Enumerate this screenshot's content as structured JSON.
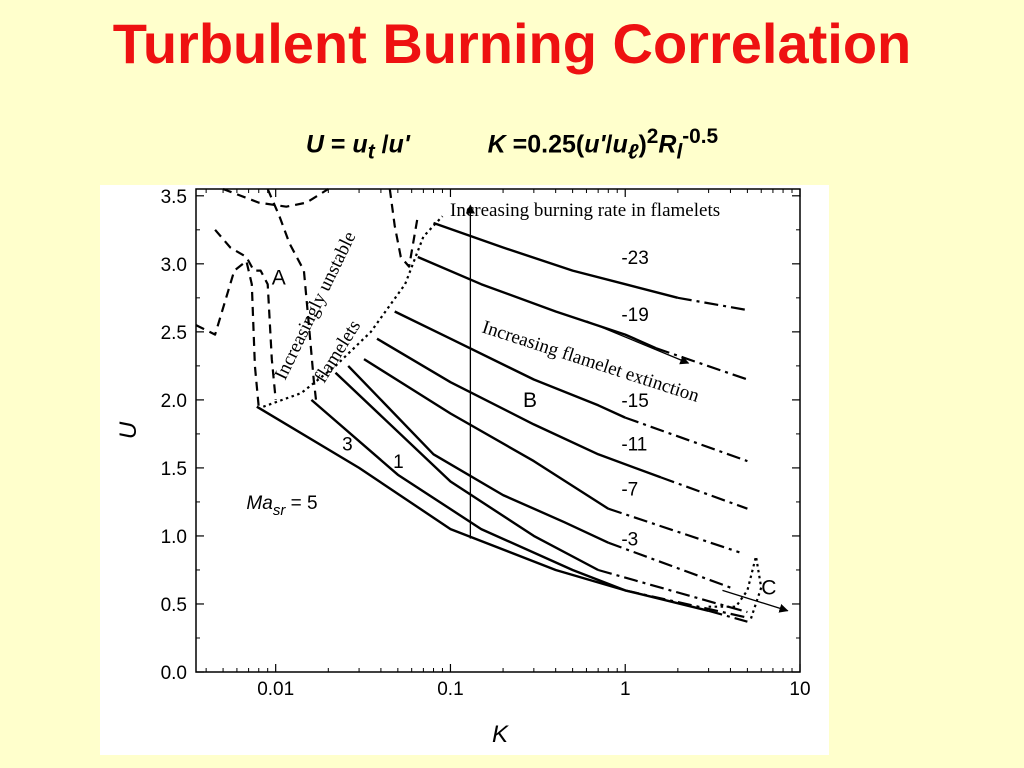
{
  "slide": {
    "title": "Turbulent Burning Correlation",
    "formula": {
      "U_lhs": "U",
      "eq": " = ",
      "u": "u",
      "t": "t",
      "slash": " /",
      "uprime": "u'",
      "K_lhs": "K",
      "k_eq": " =0.25(",
      "uprime2": "u'",
      "slash2": "/",
      "ul": "u",
      "ell": "ℓ",
      "close": ")",
      "sq": "2",
      "R": "R",
      "l": "l",
      "exp": "-0.5"
    }
  },
  "chart_data": {
    "type": "line",
    "xscale": "log",
    "xlabel": "K",
    "ylabel": "U",
    "xlim": [
      0.0035,
      10
    ],
    "ylim": [
      0,
      3.55
    ],
    "xticks": [
      0.01,
      0.1,
      1,
      10
    ],
    "xtick_labels": [
      "0.01",
      "0.1",
      "1",
      "10"
    ],
    "yticks": [
      0,
      0.5,
      1.0,
      1.5,
      2.0,
      2.5,
      3.0,
      3.5
    ],
    "ytick_labels": [
      "0.0",
      "0.5",
      "1.0",
      "1.5",
      "2.0",
      "2.5",
      "3.0",
      "3.5"
    ],
    "grid": false,
    "series": [
      {
        "name": "-23",
        "style": "solid",
        "points": [
          [
            0.08,
            3.3
          ],
          [
            0.2,
            3.12
          ],
          [
            0.5,
            2.95
          ],
          [
            1.0,
            2.85
          ],
          [
            2.0,
            2.75
          ]
        ]
      },
      {
        "name": "-23",
        "style": "dashdot",
        "points": [
          [
            2.0,
            2.75
          ],
          [
            5.0,
            2.66
          ]
        ]
      },
      {
        "name": "-19",
        "style": "solid",
        "points": [
          [
            0.065,
            3.05
          ],
          [
            0.15,
            2.85
          ],
          [
            0.4,
            2.65
          ],
          [
            1.0,
            2.48
          ],
          [
            1.5,
            2.38
          ]
        ]
      },
      {
        "name": "-19",
        "style": "dashdot",
        "points": [
          [
            1.5,
            2.38
          ],
          [
            5.0,
            2.15
          ]
        ]
      },
      {
        "name": "-15",
        "style": "solid",
        "points": [
          [
            0.048,
            2.65
          ],
          [
            0.1,
            2.45
          ],
          [
            0.3,
            2.15
          ],
          [
            0.7,
            1.96
          ],
          [
            1.0,
            1.87
          ]
        ]
      },
      {
        "name": "-15",
        "style": "dashdot",
        "points": [
          [
            1.0,
            1.87
          ],
          [
            5.0,
            1.55
          ]
        ]
      },
      {
        "name": "-11",
        "style": "solid",
        "points": [
          [
            0.038,
            2.45
          ],
          [
            0.1,
            2.13
          ],
          [
            0.3,
            1.82
          ],
          [
            0.7,
            1.6
          ],
          [
            1.6,
            1.43
          ]
        ]
      },
      {
        "name": "-11",
        "style": "dashdot",
        "points": [
          [
            1.6,
            1.43
          ],
          [
            5.0,
            1.2
          ]
        ]
      },
      {
        "name": "-7",
        "style": "solid",
        "points": [
          [
            0.032,
            2.3
          ],
          [
            0.1,
            1.9
          ],
          [
            0.3,
            1.55
          ],
          [
            0.8,
            1.2
          ]
        ]
      },
      {
        "name": "-7",
        "style": "dashdot",
        "points": [
          [
            0.8,
            1.2
          ],
          [
            4.5,
            0.88
          ]
        ]
      },
      {
        "name": "-3",
        "style": "solid",
        "points": [
          [
            0.026,
            2.25
          ],
          [
            0.08,
            1.6
          ],
          [
            0.2,
            1.3
          ],
          [
            0.45,
            1.1
          ],
          [
            0.8,
            0.95
          ]
        ]
      },
      {
        "name": "-3",
        "style": "dashdot",
        "points": [
          [
            0.8,
            0.95
          ],
          [
            4.0,
            0.62
          ]
        ]
      },
      {
        "name": "1",
        "style": "solid",
        "points": [
          [
            0.022,
            2.2
          ],
          [
            0.1,
            1.4
          ],
          [
            0.3,
            1.0
          ],
          [
            0.7,
            0.75
          ]
        ]
      },
      {
        "name": "1",
        "style": "dashdot",
        "points": [
          [
            0.7,
            0.75
          ],
          [
            5.0,
            0.44
          ]
        ]
      },
      {
        "name": "3",
        "style": "solid",
        "points": [
          [
            0.016,
            2.0
          ],
          [
            0.05,
            1.45
          ],
          [
            0.15,
            1.05
          ],
          [
            0.5,
            0.75
          ],
          [
            1.0,
            0.6
          ]
        ]
      },
      {
        "name": "3",
        "style": "dashdot",
        "points": [
          [
            1.0,
            0.6
          ],
          [
            5.0,
            0.4
          ]
        ]
      },
      {
        "name": "5",
        "style": "solid",
        "points": [
          [
            0.0078,
            1.95
          ],
          [
            0.03,
            1.5
          ],
          [
            0.1,
            1.05
          ],
          [
            0.4,
            0.75
          ],
          [
            1.0,
            0.6
          ],
          [
            3.0,
            0.45
          ]
        ]
      },
      {
        "name": "5",
        "style": "dashdot",
        "points": [
          [
            3.0,
            0.45
          ],
          [
            5.0,
            0.37
          ]
        ]
      },
      {
        "name": "A-boundary-left",
        "style": "dashed",
        "points": [
          [
            0.0035,
            2.55
          ],
          [
            0.0045,
            2.48
          ],
          [
            0.0058,
            2.95
          ],
          [
            0.0068,
            3.02
          ],
          [
            0.0073,
            2.85
          ],
          [
            0.0076,
            2.25
          ],
          [
            0.008,
            1.95
          ]
        ]
      },
      {
        "name": "A-boundary-upper",
        "style": "dashed",
        "points": [
          [
            0.0045,
            3.25
          ],
          [
            0.0055,
            3.12
          ],
          [
            0.0068,
            3.05
          ],
          [
            0.0075,
            2.95
          ],
          [
            0.0082,
            2.95
          ],
          [
            0.009,
            2.85
          ],
          [
            0.0095,
            2.3
          ],
          [
            0.01,
            2.0
          ]
        ]
      },
      {
        "name": "A-top-1",
        "style": "dashed",
        "points": [
          [
            0.005,
            3.55
          ],
          [
            0.008,
            3.45
          ],
          [
            0.0115,
            3.42
          ],
          [
            0.015,
            3.45
          ],
          [
            0.02,
            3.55
          ]
        ]
      },
      {
        "name": "A-top-2",
        "style": "dashed",
        "points": [
          [
            0.009,
            3.55
          ],
          [
            0.0105,
            3.35
          ],
          [
            0.012,
            3.15
          ],
          [
            0.0145,
            2.95
          ],
          [
            0.0155,
            2.55
          ],
          [
            0.0165,
            2.15
          ],
          [
            0.017,
            2.0
          ]
        ]
      },
      {
        "name": "A-top-3",
        "style": "dashed",
        "points": [
          [
            0.045,
            3.55
          ],
          [
            0.048,
            3.28
          ],
          [
            0.052,
            3.05
          ],
          [
            0.058,
            2.98
          ],
          [
            0.065,
            3.35
          ]
        ]
      },
      {
        "name": "flamelet-boundary",
        "style": "dotted",
        "points": [
          [
            0.0085,
            1.95
          ],
          [
            0.014,
            2.05
          ],
          [
            0.022,
            2.25
          ],
          [
            0.035,
            2.5
          ],
          [
            0.055,
            2.85
          ],
          [
            0.07,
            3.2
          ],
          [
            0.09,
            3.35
          ]
        ]
      },
      {
        "name": "C-boundary",
        "style": "dotted",
        "points": [
          [
            3.0,
            0.48
          ],
          [
            4.3,
            0.48
          ],
          [
            5.0,
            0.6
          ],
          [
            5.6,
            0.85
          ],
          [
            6.0,
            0.62
          ],
          [
            5.2,
            0.38
          ]
        ]
      }
    ],
    "curve_labels": [
      {
        "text": "-23",
        "x": 0.95,
        "y": 3.05
      },
      {
        "text": "-19",
        "x": 0.95,
        "y": 2.63
      },
      {
        "text": "-15",
        "x": 0.95,
        "y": 2.0
      },
      {
        "text": "-11",
        "x": 0.95,
        "y": 1.68
      },
      {
        "text": "-7",
        "x": 0.95,
        "y": 1.35
      },
      {
        "text": "-3",
        "x": 0.95,
        "y": 0.98
      },
      {
        "text": "1",
        "x": 0.047,
        "y": 1.55
      },
      {
        "text": "3",
        "x": 0.024,
        "y": 1.68
      }
    ],
    "region_labels": [
      {
        "text": "A",
        "x": 0.0095,
        "y": 2.9
      },
      {
        "text": "B",
        "x": 0.26,
        "y": 2.0
      },
      {
        "text": "C",
        "x": 6.0,
        "y": 0.62
      }
    ],
    "annotations": {
      "mach_label": {
        "prefix": "Ma",
        "subscript": "sr",
        "suffix": " = 5",
        "x": 0.0068,
        "y": 1.25
      },
      "increasing_burning_rate": "Increasing burning rate in flamelets",
      "increasing_extinction": "Increasing flamelet extinction",
      "increasingly_unstable": "Increasingly unstable",
      "flamelets": "flamelets"
    },
    "arrows": [
      {
        "name": "burning-rate-arrow",
        "from": [
          0.13,
          0.98
        ],
        "to": [
          0.13,
          3.43
        ]
      },
      {
        "name": "extinction-arrow",
        "from": [
          0.6,
          2.58
        ],
        "to": [
          2.3,
          2.27
        ]
      },
      {
        "name": "c-arrow",
        "from": [
          3.6,
          0.6
        ],
        "to": [
          8.5,
          0.45
        ]
      }
    ]
  }
}
